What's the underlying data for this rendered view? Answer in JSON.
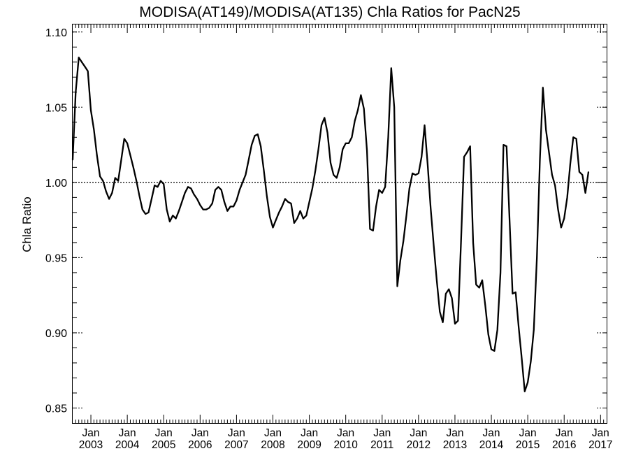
{
  "chart_data": {
    "type": "line",
    "title": "MODISA(AT149)/MODISA(AT135)  Chla Ratios for PacN25",
    "xlabel": "",
    "ylabel": "Chla Ratio",
    "ylim": [
      0.84,
      1.105
    ],
    "xlim_months": [
      "2002-07",
      "2017-03"
    ],
    "reference_line": {
      "y": 1.0,
      "style": "dotted"
    },
    "grid": false,
    "yticks": [
      "0.85",
      "0.90",
      "0.95",
      "1.00",
      "1.05",
      "1.10"
    ],
    "xticks": [
      {
        "month": "Jan",
        "year": "2003"
      },
      {
        "month": "Jan",
        "year": "2004"
      },
      {
        "month": "Jan",
        "year": "2005"
      },
      {
        "month": "Jan",
        "year": "2006"
      },
      {
        "month": "Jan",
        "year": "2007"
      },
      {
        "month": "Jan",
        "year": "2008"
      },
      {
        "month": "Jan",
        "year": "2009"
      },
      {
        "month": "Jan",
        "year": "2010"
      },
      {
        "month": "Jan",
        "year": "2011"
      },
      {
        "month": "Jan",
        "year": "2012"
      },
      {
        "month": "Jan",
        "year": "2013"
      },
      {
        "month": "Jan",
        "year": "2014"
      },
      {
        "month": "Jan",
        "year": "2015"
      },
      {
        "month": "Jan",
        "year": "2016"
      },
      {
        "month": "Jan",
        "year": "2017"
      }
    ],
    "series": [
      {
        "start": "2002-07",
        "step": "month",
        "values": [
          1.015,
          1.06,
          1.083,
          1.08,
          1.077,
          1.074,
          1.048,
          1.035,
          1.018,
          1.004,
          1.001,
          0.994,
          0.989,
          0.993,
          1.003,
          1.001,
          1.015,
          1.029,
          1.026,
          1.018,
          1.01,
          1.001,
          0.991,
          0.982,
          0.979,
          0.98,
          0.989,
          0.998,
          0.997,
          1.001,
          0.999,
          0.982,
          0.974,
          0.978,
          0.976,
          0.981,
          0.987,
          0.993,
          0.997,
          0.996,
          0.992,
          0.989,
          0.985,
          0.982,
          0.982,
          0.983,
          0.986,
          0.995,
          0.997,
          0.995,
          0.987,
          0.981,
          0.984,
          0.984,
          0.988,
          0.995,
          1.0,
          1.005,
          1.015,
          1.025,
          1.031,
          1.032,
          1.024,
          1.008,
          0.991,
          0.977,
          0.97,
          0.975,
          0.98,
          0.984,
          0.989,
          0.987,
          0.986,
          0.973,
          0.976,
          0.981,
          0.976,
          0.978,
          0.987,
          0.996,
          1.008,
          1.022,
          1.038,
          1.043,
          1.033,
          1.013,
          1.005,
          1.003,
          1.01,
          1.022,
          1.026,
          1.026,
          1.03,
          1.041,
          1.048,
          1.058,
          1.049,
          1.021,
          0.969,
          0.968,
          0.984,
          0.995,
          0.993,
          0.997,
          1.03,
          1.076,
          1.05,
          0.931,
          0.948,
          0.961,
          0.978,
          0.996,
          1.006,
          1.005,
          1.006,
          1.017,
          1.038,
          1.012,
          0.983,
          0.958,
          0.935,
          0.914,
          0.907,
          0.926,
          0.929,
          0.923,
          0.906,
          0.908,
          0.96,
          1.017,
          1.02,
          1.024,
          0.96,
          0.932,
          0.93,
          0.935,
          0.918,
          0.899,
          0.889,
          0.888,
          0.902,
          0.94,
          1.025,
          1.024,
          0.975,
          0.926,
          0.927,
          0.904,
          0.883,
          0.861,
          0.867,
          0.881,
          0.902,
          0.95,
          1.015,
          1.063,
          1.035,
          1.02,
          1.005,
          0.998,
          0.982,
          0.97,
          0.976,
          0.99,
          1.012,
          1.03,
          1.029,
          1.007,
          1.005,
          0.993,
          1.007
        ]
      }
    ]
  }
}
